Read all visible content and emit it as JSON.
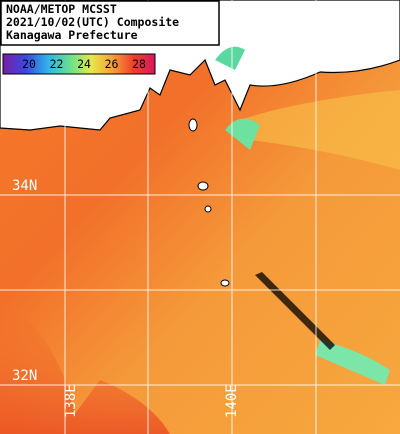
{
  "header": {
    "lines": [
      "NOAA/METOP MCSST",
      "2021/10/02(UTC) Composite",
      "Kanagawa Prefecture"
    ]
  },
  "colorbar": {
    "labels": [
      20,
      22,
      24,
      26,
      28
    ]
  },
  "grid": {
    "latitudes": [
      "34N",
      "32N"
    ],
    "longitudes": [
      "138E",
      "140E"
    ]
  }
}
